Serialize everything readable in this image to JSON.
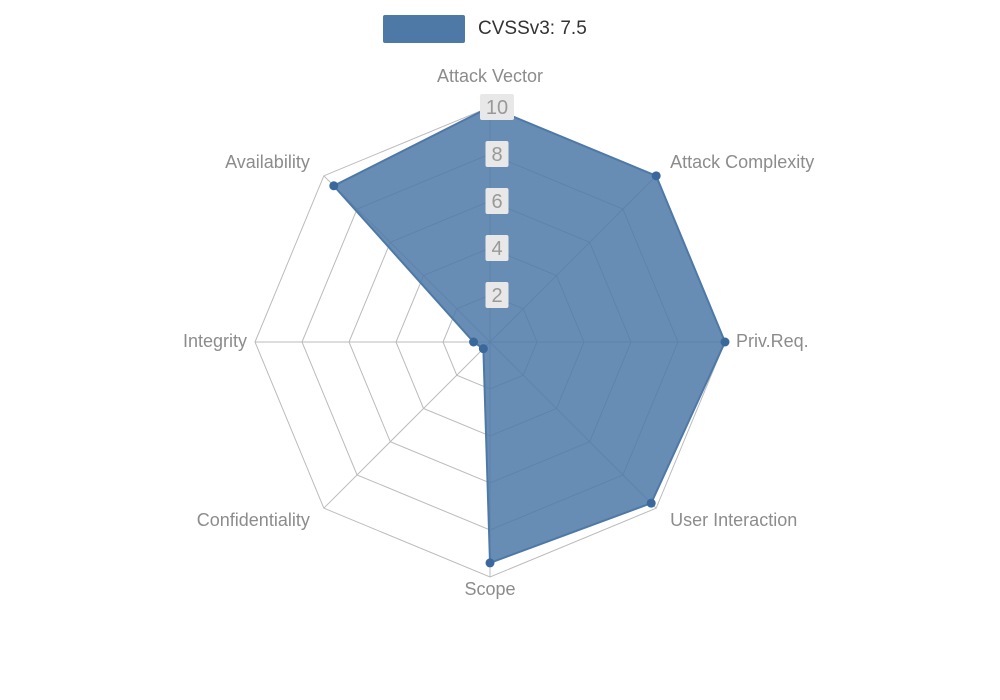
{
  "chart_data": {
    "type": "radar",
    "legend_position": "top",
    "indicators": [
      "Attack Vector",
      "Attack Complexity",
      "Priv.Req.",
      "User Interaction",
      "Scope",
      "Confidentiality",
      "Integrity",
      "Availability"
    ],
    "max": 10,
    "tick_interval": 2,
    "ticks": [
      {
        "value": 2,
        "label": "2"
      },
      {
        "value": 4,
        "label": "4"
      },
      {
        "value": 6,
        "label": "6"
      },
      {
        "value": 8,
        "label": "8"
      },
      {
        "value": 10,
        "label": "10"
      }
    ],
    "series": [
      {
        "name": "CVSSv3: 7.5",
        "values": [
          10,
          10,
          10,
          9.7,
          9.4,
          0.4,
          0.7,
          9.4
        ]
      }
    ],
    "series_color": "#4e79a7",
    "marker_color": "#3a689c",
    "grid_color": "#bbbbbb",
    "tick_text_color": "#999999",
    "tick_box_color": "#e8e8e8",
    "axis_label_color": "#8c8c8c",
    "legend_text_color": "#333333"
  }
}
